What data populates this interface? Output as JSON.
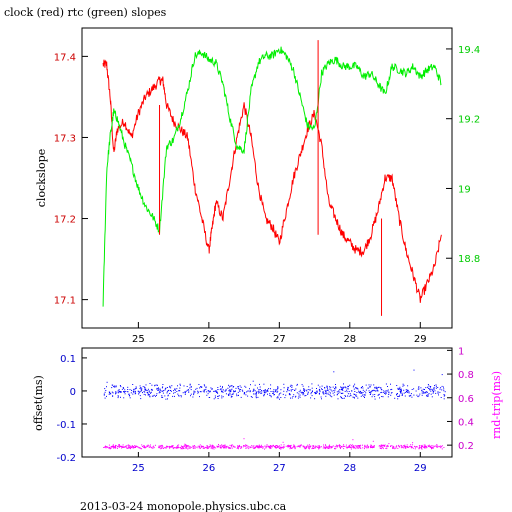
{
  "chart_data": [
    {
      "type": "line",
      "title": "clock (red) rtc (green) slopes",
      "ylabel": "clockslope",
      "x_ticks": [
        "25",
        "26",
        "27",
        "28",
        "29"
      ],
      "xlim": [
        24.2,
        29.45
      ],
      "y_left_ticks": [
        "17.1",
        "17.2",
        "17.3",
        "17.4"
      ],
      "y_left_range": [
        17.065,
        17.435
      ],
      "y_right_ticks": [
        "18.8",
        "19",
        "19.2",
        "19.4"
      ],
      "y_right_range": [
        18.6,
        19.46
      ],
      "colors": {
        "clock": "#ff0000",
        "rtc": "#00ee00",
        "left_axis": "#cc0000",
        "right_axis": "#00cc00"
      },
      "series": [
        {
          "name": "clock",
          "axis": "left",
          "color": "#ff0000",
          "x": [
            24.5,
            24.55,
            24.6,
            24.65,
            24.7,
            24.8,
            24.9,
            25.0,
            25.1,
            25.2,
            25.3,
            25.35,
            25.4,
            25.5,
            25.6,
            25.7,
            25.8,
            25.9,
            26.0,
            26.05,
            26.1,
            26.2,
            26.3,
            26.4,
            26.5,
            26.6,
            26.7,
            26.8,
            26.9,
            27.0,
            27.1,
            27.2,
            27.3,
            27.4,
            27.5,
            27.6,
            27.7,
            27.8,
            27.9,
            28.0,
            28.1,
            28.2,
            28.3,
            28.4,
            28.5,
            28.6,
            28.7,
            28.8,
            28.9,
            29.0,
            29.1,
            29.2,
            29.3
          ],
          "y": [
            17.39,
            17.39,
            17.35,
            17.28,
            17.31,
            17.32,
            17.3,
            17.33,
            17.35,
            17.36,
            17.37,
            17.37,
            17.34,
            17.32,
            17.31,
            17.3,
            17.24,
            17.2,
            17.16,
            17.19,
            17.22,
            17.2,
            17.25,
            17.3,
            17.34,
            17.3,
            17.24,
            17.2,
            17.19,
            17.17,
            17.21,
            17.25,
            17.28,
            17.31,
            17.33,
            17.29,
            17.22,
            17.2,
            17.18,
            17.17,
            17.16,
            17.16,
            17.18,
            17.21,
            17.25,
            17.25,
            17.2,
            17.16,
            17.13,
            17.1,
            17.12,
            17.14,
            17.18
          ]
        },
        {
          "name": "rtc",
          "axis": "right",
          "color": "#00ee00",
          "x": [
            24.5,
            24.55,
            24.6,
            24.65,
            24.7,
            24.8,
            24.9,
            25.0,
            25.1,
            25.2,
            25.3,
            25.4,
            25.5,
            25.6,
            25.7,
            25.8,
            25.9,
            26.0,
            26.1,
            26.2,
            26.3,
            26.4,
            26.5,
            26.6,
            26.7,
            26.8,
            26.9,
            27.0,
            27.1,
            27.2,
            27.3,
            27.4,
            27.5,
            27.6,
            27.7,
            27.8,
            27.9,
            28.0,
            28.1,
            28.2,
            28.3,
            28.4,
            28.5,
            28.6,
            28.7,
            28.8,
            28.9,
            29.0,
            29.1,
            29.2,
            29.3
          ],
          "y": [
            18.67,
            19.05,
            19.15,
            19.22,
            19.2,
            19.13,
            19.07,
            19.0,
            18.95,
            18.92,
            18.88,
            19.12,
            19.14,
            19.2,
            19.28,
            19.38,
            19.39,
            19.37,
            19.36,
            19.3,
            19.2,
            19.12,
            19.11,
            19.28,
            19.36,
            19.38,
            19.38,
            19.4,
            19.38,
            19.34,
            19.26,
            19.18,
            19.17,
            19.33,
            19.36,
            19.37,
            19.35,
            19.35,
            19.35,
            19.32,
            19.33,
            19.3,
            19.27,
            19.35,
            19.34,
            19.33,
            19.35,
            19.32,
            19.34,
            19.35,
            19.3
          ]
        }
      ],
      "spikes": [
        {
          "x": 25.3,
          "y": [
            17.18,
            17.34
          ]
        },
        {
          "x": 27.55,
          "y": [
            17.18,
            17.42
          ]
        },
        {
          "x": 28.45,
          "y": [
            17.08,
            17.2
          ]
        }
      ]
    },
    {
      "type": "scatter",
      "ylabel": "offset(ms)",
      "y2label": "rnd-trip(ms)",
      "x_ticks": [
        "25",
        "26",
        "27",
        "28",
        "29"
      ],
      "xlim": [
        24.2,
        29.45
      ],
      "y_left_ticks": [
        "0.1",
        "0",
        "-0.1",
        "-0.2"
      ],
      "y_left_range": [
        -0.2,
        0.13
      ],
      "y_right_ticks": [
        "0.2",
        "0.4",
        "0.6",
        "0.8",
        "1"
      ],
      "y_right_range": [
        0.1,
        1.02
      ],
      "colors": {
        "offset": "#0000ff",
        "rnd_trip": "#ff00ff"
      },
      "series": [
        {
          "name": "offset",
          "axis": "left",
          "color": "#0000ff",
          "x_range": [
            24.5,
            29.35
          ],
          "y_center": 0.0,
          "y_spread": 0.025
        },
        {
          "name": "rnd-trip",
          "axis": "right",
          "color": "#ff00ff",
          "x_range": [
            24.5,
            29.35
          ],
          "y_center": 0.19,
          "y_spread": 0.02
        }
      ]
    }
  ],
  "footer": "2013-03-24  monopole.physics.ubc.ca"
}
